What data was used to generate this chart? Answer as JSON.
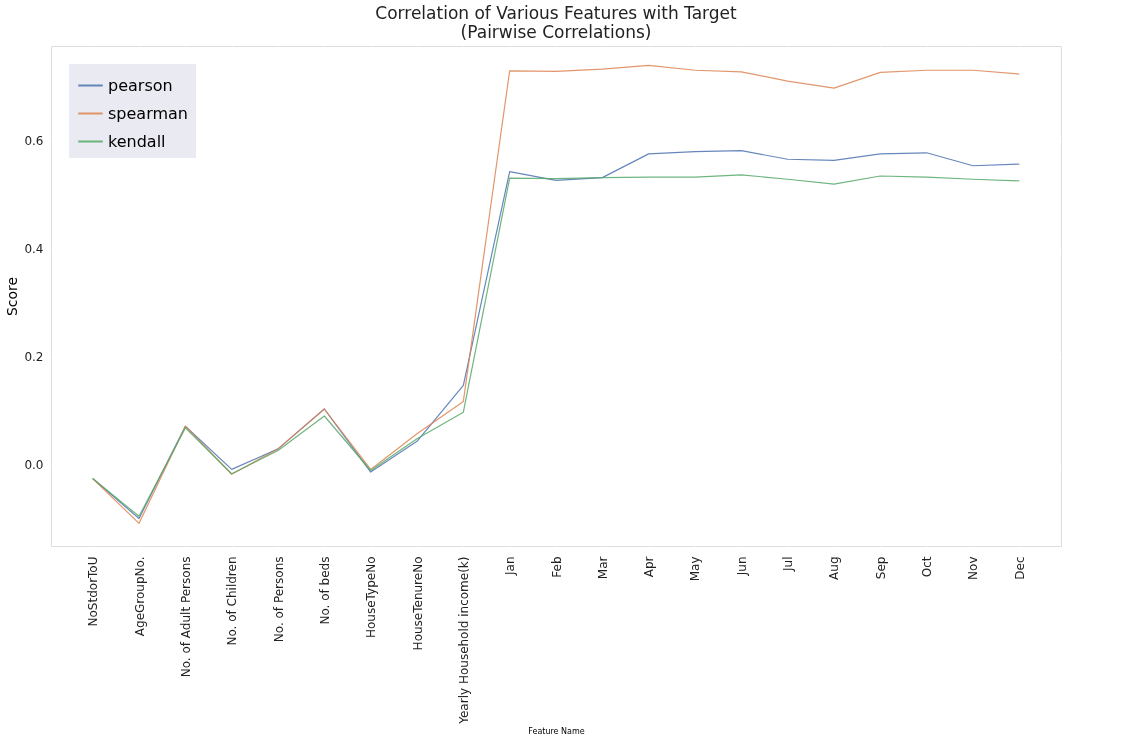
{
  "chart_data": {
    "type": "line",
    "title": "Correlation of Various Features with Target",
    "subtitle": "(Pairwise Correlations)",
    "xlabel": "Feature Name",
    "ylabel": "Score",
    "categories": [
      "NoStdorToU",
      "AgeGroupNo.",
      "No. of Adult Persons",
      "No. of Children",
      "No. of Persons",
      "No. of beds",
      "HouseTypeNo",
      "HouseTenureNo",
      "Yearly Household income(k)",
      "Jan",
      "Feb",
      "Mar",
      "Apr",
      "May",
      "Jun",
      "Jul",
      "Aug",
      "Sep",
      "Oct",
      "Nov",
      "Dec"
    ],
    "series": [
      {
        "name": "pearson",
        "color": "#4c72b0",
        "values": [
          -0.026,
          -0.1,
          0.071,
          -0.009,
          0.029,
          0.103,
          -0.014,
          0.043,
          0.147,
          0.543,
          0.527,
          0.532,
          0.576,
          0.58,
          0.582,
          0.566,
          0.564,
          0.576,
          0.578,
          0.554,
          0.557
        ]
      },
      {
        "name": "spearman",
        "color": "#dd8452",
        "values": [
          -0.026,
          -0.109,
          0.071,
          -0.018,
          0.029,
          0.103,
          -0.009,
          0.057,
          0.117,
          0.73,
          0.729,
          0.733,
          0.74,
          0.731,
          0.728,
          0.711,
          0.698,
          0.727,
          0.731,
          0.731,
          0.724
        ]
      },
      {
        "name": "kendall",
        "color": "#55a868",
        "values": [
          -0.026,
          -0.096,
          0.068,
          -0.017,
          0.026,
          0.09,
          -0.011,
          0.048,
          0.097,
          0.531,
          0.53,
          0.532,
          0.533,
          0.533,
          0.537,
          0.529,
          0.52,
          0.535,
          0.533,
          0.529,
          0.526
        ]
      }
    ],
    "ylim": [
      -0.151,
      0.776
    ],
    "yticks": [
      {
        "value": 0,
        "label": "0.0"
      },
      {
        "value": 0.2,
        "label": "0.2"
      },
      {
        "value": 0.4,
        "label": "0.4"
      },
      {
        "value": 0.6,
        "label": "0.6"
      }
    ],
    "grid": true,
    "legend": "top left",
    "marker": "none",
    "line_style": "solid"
  }
}
